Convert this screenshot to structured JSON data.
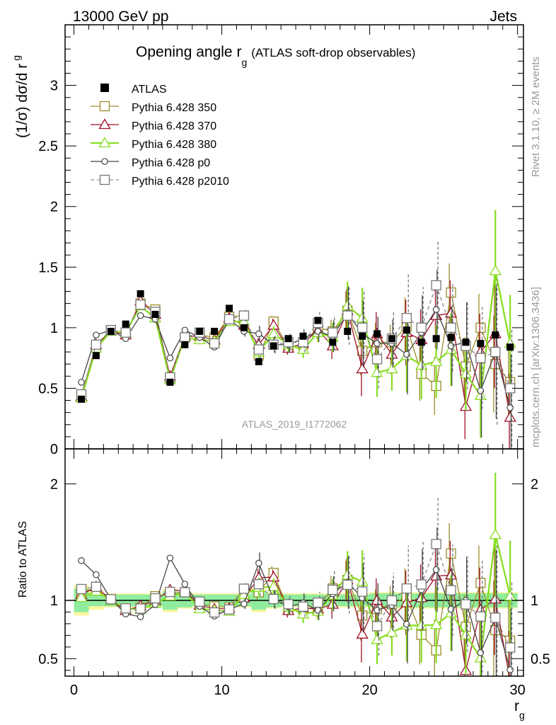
{
  "header": {
    "left": "13000 GeV pp",
    "right": "Jets"
  },
  "side_labels": {
    "rivet": "Rivet 3.1.10, ≥ 2M events",
    "mcplots": "mcplots.cern.ch [arXiv:1306.3436]"
  },
  "chart_data": {
    "type": "scatter",
    "title": {
      "main": "Opening angle r",
      "sub": "g",
      "suffix": "(ATLAS soft-drop observables)"
    },
    "watermark": "ATLAS_2019_I1772062",
    "ylabel": {
      "main": "(1/σ) dσ/d r",
      "sub": "g"
    },
    "xlabel": {
      "main": "r",
      "sub": "g"
    },
    "ratio_ylabel": "Ratio to ATLAS",
    "xlim": [
      -0.6,
      30.4
    ],
    "ylim": [
      0,
      3.5
    ],
    "ratio_ylim": [
      0.35,
      2.3
    ],
    "x_ticks": [
      "0",
      "10",
      "20",
      "30"
    ],
    "y_ticks": [
      "0",
      "0.5",
      "1",
      "1.5",
      "2",
      "2.5",
      "3"
    ],
    "ratio_ticks": [
      "0.5",
      "1",
      "2"
    ],
    "x": [
      0.5,
      1.5,
      2.5,
      3.5,
      4.5,
      5.5,
      6.5,
      7.5,
      8.5,
      9.5,
      10.5,
      11.5,
      12.5,
      13.5,
      14.5,
      15.5,
      16.5,
      17.5,
      18.5,
      19.5,
      20.5,
      21.5,
      22.5,
      23.5,
      24.5,
      25.5,
      26.5,
      27.5,
      28.5,
      29.5
    ],
    "data": {
      "name": "ATLAS",
      "values": [
        0.41,
        0.77,
        0.97,
        1.03,
        1.28,
        1.11,
        0.55,
        0.86,
        0.97,
        0.97,
        1.16,
        1.0,
        0.72,
        0.85,
        0.91,
        0.93,
        1.06,
        0.88,
        0.97,
        0.93,
        0.95,
        0.91,
        0.98,
        0.88,
        0.91,
        0.92,
        0.88,
        0.87,
        0.94,
        0.84
      ]
    },
    "series": [
      {
        "name": "Pythia 6.428 350",
        "color": "#9a8c2a",
        "marker": "square",
        "dashed": false,
        "lw": 1.3,
        "values": [
          0.44,
          0.85,
          0.98,
          0.95,
          1.2,
          1.15,
          0.58,
          0.92,
          0.94,
          0.92,
          1.09,
          1.1,
          0.77,
          1.05,
          0.84,
          0.86,
          1.0,
          0.97,
          1.14,
          0.81,
          0.88,
          0.88,
          1.01,
          0.62,
          0.52,
          1.29,
          0.68,
          1.0,
          0.7,
          0.55
        ]
      },
      {
        "name": "Pythia 6.428 370",
        "color": "#a01028",
        "marker": "triangle",
        "dashed": false,
        "lw": 1.3,
        "values": [
          0.43,
          0.86,
          0.97,
          0.94,
          1.22,
          1.11,
          0.6,
          0.93,
          0.93,
          0.9,
          1.08,
          1.02,
          0.86,
          1.02,
          0.83,
          0.87,
          0.98,
          0.85,
          1.14,
          0.66,
          0.95,
          0.78,
          0.96,
          0.9,
          1.1,
          1.12,
          0.35,
          0.8,
          0.95,
          0.26
        ]
      },
      {
        "name": "Pythia 6.428 380",
        "color": "#88dd22",
        "marker": "triangle",
        "dashed": false,
        "lw": 2.3,
        "values": [
          0.42,
          0.83,
          0.97,
          0.96,
          1.18,
          1.08,
          0.57,
          0.92,
          0.9,
          0.89,
          1.05,
          1.05,
          0.8,
          0.95,
          0.86,
          0.82,
          0.96,
          0.92,
          1.18,
          1.08,
          0.63,
          0.66,
          0.77,
          0.69,
          0.72,
          0.82,
          0.62,
          0.44,
          1.47,
          0.87
        ]
      },
      {
        "name": "Pythia 6.428 p0",
        "color": "#444444",
        "marker": "circle",
        "dashed": false,
        "lw": 1.3,
        "values": [
          0.55,
          0.94,
          0.98,
          0.91,
          1.1,
          1.07,
          0.75,
          0.98,
          0.92,
          0.84,
          1.07,
          0.97,
          0.95,
          0.86,
          0.86,
          0.91,
          0.97,
          0.93,
          1.12,
          0.95,
          0.87,
          0.87,
          0.78,
          0.96,
          1.15,
          0.85,
          0.88,
          0.48,
          0.8,
          0.34
        ]
      },
      {
        "name": "Pythia 6.428 p2010",
        "color": "#777777",
        "marker": "square",
        "dashed": true,
        "lw": 1.1,
        "values": [
          0.45,
          0.86,
          0.98,
          0.96,
          1.19,
          1.13,
          0.59,
          0.92,
          0.96,
          0.87,
          1.07,
          1.1,
          0.82,
          0.86,
          0.88,
          0.88,
          1.04,
          0.96,
          1.1,
          1.0,
          0.74,
          0.91,
          1.08,
          1.0,
          1.35,
          1.0,
          0.85,
          0.75,
          0.8,
          0.5
        ]
      }
    ],
    "errors": [
      0.0,
      0.0,
      0.0,
      0.0,
      0.0,
      0.0,
      0.0,
      0.0,
      0.0,
      0.0,
      0.0,
      0.04,
      0.06,
      0.06,
      0.06,
      0.07,
      0.08,
      0.12,
      0.2,
      0.25,
      0.2,
      0.18,
      0.3,
      0.28,
      0.3,
      0.3,
      0.3,
      0.35,
      0.5,
      0.4
    ],
    "band_inner": [
      0.1,
      0.05,
      0.05,
      0.05,
      0.05,
      0.05,
      0.08,
      0.06,
      0.05,
      0.05,
      0.05,
      0.05,
      0.08,
      0.06,
      0.05,
      0.05,
      0.05,
      0.05,
      0.05,
      0.05,
      0.06,
      0.06,
      0.06,
      0.06,
      0.06,
      0.06,
      0.06,
      0.06,
      0.06,
      0.06
    ],
    "band_outer": [
      0.13,
      0.08,
      0.06,
      0.06,
      0.06,
      0.06,
      0.1,
      0.07,
      0.06,
      0.06,
      0.06,
      0.06,
      0.1,
      0.07,
      0.06,
      0.06,
      0.06,
      0.06,
      0.06,
      0.06,
      0.07,
      0.07,
      0.07,
      0.07,
      0.07,
      0.07,
      0.07,
      0.07,
      0.07,
      0.07
    ],
    "colors": {
      "band_inner": "#8fec9f",
      "band_outer": "#fbf59a",
      "data": "#000000"
    },
    "legend_position": "top-left"
  }
}
